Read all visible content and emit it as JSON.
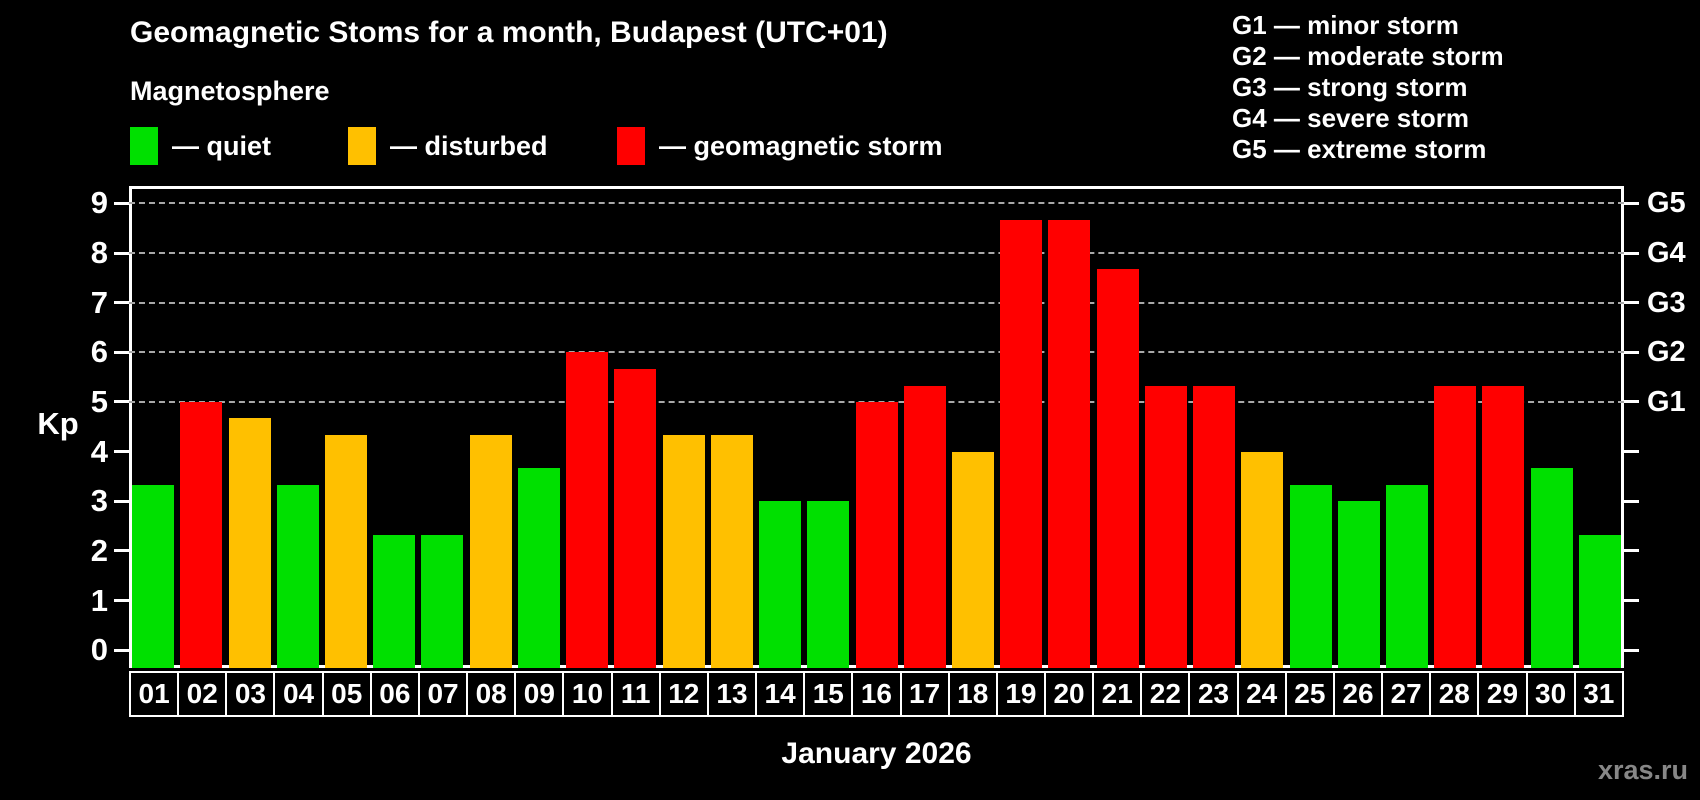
{
  "header": {
    "title": "Geomagnetic Stoms for a month, Budapest (UTC+01)",
    "subtitle": "Magnetosphere"
  },
  "status_legend": {
    "items": [
      {
        "name": "quiet",
        "label": "— quiet",
        "color": "#00e000"
      },
      {
        "name": "disturbed",
        "label": "— disturbed",
        "color": "#ffc000"
      },
      {
        "name": "storm",
        "label": "— geomagnetic storm",
        "color": "#ff0000"
      }
    ]
  },
  "storm_scale_legend": {
    "items": [
      {
        "code": "G1",
        "label": "G1 — minor storm"
      },
      {
        "code": "G2",
        "label": "G2 — moderate storm"
      },
      {
        "code": "G3",
        "label": "G3 — strong storm"
      },
      {
        "code": "G4",
        "label": "G4 — severe storm"
      },
      {
        "code": "G5",
        "label": "G5 — extreme storm"
      }
    ]
  },
  "chart_data": {
    "type": "bar",
    "title": "Geomagnetic Stoms for a month, Budapest (UTC+01)",
    "ylabel": "Kp",
    "xlabel": "January 2026",
    "ylim": [
      0,
      9
    ],
    "yticks": [
      0,
      1,
      2,
      3,
      4,
      5,
      6,
      7,
      8,
      9
    ],
    "gridlines": [
      5,
      6,
      7,
      8,
      9
    ],
    "grid": "horizontal dashed lines at storm levels G1–G5 only",
    "legend_position": "top-left",
    "right_axis": {
      "labels": [
        "G1",
        "G2",
        "G3",
        "G4",
        "G5"
      ],
      "values": [
        5,
        6,
        7,
        8,
        9
      ]
    },
    "categories": [
      "01",
      "02",
      "03",
      "04",
      "05",
      "06",
      "07",
      "08",
      "09",
      "10",
      "11",
      "12",
      "13",
      "14",
      "15",
      "16",
      "17",
      "18",
      "19",
      "20",
      "21",
      "22",
      "23",
      "24",
      "25",
      "26",
      "27",
      "28",
      "29",
      "30",
      "31"
    ],
    "values": [
      3.33,
      5.0,
      4.67,
      3.33,
      4.33,
      2.33,
      2.33,
      4.33,
      3.67,
      6.0,
      5.67,
      4.33,
      4.33,
      3.0,
      3.0,
      5.0,
      5.33,
      4.0,
      8.67,
      8.67,
      7.67,
      5.33,
      5.33,
      4.0,
      3.33,
      3.0,
      3.33,
      5.33,
      5.33,
      3.67,
      2.33
    ],
    "statuses": [
      "quiet",
      "storm",
      "disturbed",
      "quiet",
      "disturbed",
      "quiet",
      "quiet",
      "disturbed",
      "quiet",
      "storm",
      "storm",
      "disturbed",
      "disturbed",
      "quiet",
      "quiet",
      "storm",
      "storm",
      "disturbed",
      "storm",
      "storm",
      "storm",
      "storm",
      "storm",
      "disturbed",
      "quiet",
      "quiet",
      "quiet",
      "storm",
      "storm",
      "quiet",
      "quiet"
    ]
  },
  "colors": {
    "quiet": "#00e000",
    "disturbed": "#ffc000",
    "storm": "#ff0000",
    "background": "#000000",
    "axis": "#ffffff",
    "gridline": "#a8a8a8",
    "watermark": "#878787"
  },
  "footer": {
    "axis_title": "January 2026",
    "watermark": "xras.ru"
  }
}
